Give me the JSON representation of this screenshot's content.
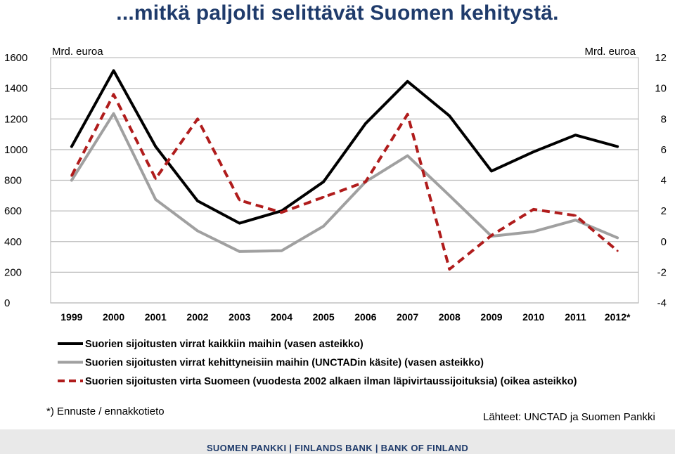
{
  "title": "...mitkä paljolti selittävät Suomen kehitystä.",
  "chart_data": {
    "type": "line",
    "categories": [
      "1999",
      "2000",
      "2001",
      "2002",
      "2003",
      "2004",
      "2005",
      "2006",
      "2007",
      "2008",
      "2009",
      "2010",
      "2011",
      "2012*"
    ],
    "left_axis": {
      "label": "Mrd. euroa",
      "ticks": [
        0,
        200,
        400,
        600,
        800,
        1000,
        1200,
        1400,
        1600
      ],
      "range": [
        0,
        1600
      ]
    },
    "right_axis": {
      "label": "Mrd. euroa",
      "ticks": [
        -4,
        -2,
        0,
        2,
        4,
        6,
        8,
        10,
        12
      ],
      "range": [
        -4,
        12
      ]
    },
    "grid": true,
    "series": [
      {
        "name": "Suorien sijoitusten virrat kaikkiin maihin (vasen asteikko)",
        "axis": "left",
        "color": "#000000",
        "style": "solid",
        "values": [
          1020,
          1515,
          1020,
          665,
          520,
          600,
          790,
          1170,
          1445,
          1220,
          860,
          985,
          1095,
          1020
        ]
      },
      {
        "name": "Suorien sijoitusten virrat kehittyneisiin maihin (UNCTADin käsite) (vasen asteikko)",
        "axis": "left",
        "color": "#a0a0a0",
        "style": "solid",
        "values": [
          800,
          1235,
          675,
          470,
          335,
          340,
          500,
          790,
          960,
          700,
          435,
          465,
          540,
          425
        ]
      },
      {
        "name": "Suorien sijoitusten virta Suomeen (vuodesta 2002 alkaen ilman läpivirtaussijoituksia) (oikea asteikko)",
        "axis": "right",
        "color": "#b01c1c",
        "style": "dashed",
        "values": [
          4.3,
          9.6,
          4.1,
          8.0,
          2.7,
          1.9,
          2.9,
          3.9,
          8.3,
          -1.8,
          0.4,
          2.1,
          1.7,
          -0.6
        ]
      }
    ]
  },
  "footnote": "*) Ennuste / ennakkotieto",
  "source": "Lähteet: UNCTAD ja Suomen Pankki",
  "footer": "SUOMEN PANKKI | FINLANDS BANK | BANK OF FINLAND"
}
